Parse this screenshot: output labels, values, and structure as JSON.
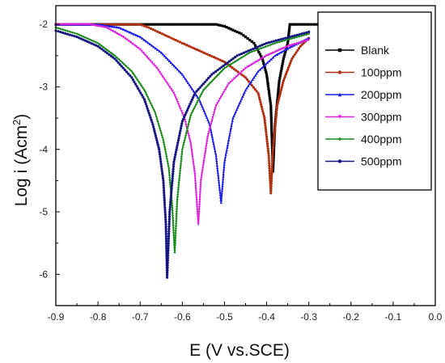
{
  "chart_data": {
    "type": "line",
    "title": "",
    "xlabel": "E (V vs.SCE)",
    "ylabel_main": "Log i (Acm",
    "ylabel_sup": "2",
    "ylabel_close": ")",
    "xlim": [
      -0.9,
      0.0
    ],
    "ylim": [
      -6.5,
      -1.7
    ],
    "x_ticks": [
      -0.9,
      -0.8,
      -0.7,
      -0.6,
      -0.5,
      -0.4,
      -0.3,
      -0.2,
      -0.1,
      0.0
    ],
    "x_tick_labels": [
      "-0.9",
      "-0.8",
      "-0.7",
      "-0.6",
      "-0.5",
      "-0.4",
      "-0.3",
      "-0.2",
      "-0.1",
      "0.0"
    ],
    "y_ticks": [
      -6,
      -5,
      -4,
      -3,
      -2
    ],
    "y_tick_labels": [
      "-6",
      "-5",
      "-4",
      "-3",
      "-2"
    ],
    "grid": false,
    "legend_position": "top-right",
    "series": [
      {
        "name": "Blank",
        "color": "#000000",
        "marker": "square",
        "x": [
          -0.9,
          -0.8,
          -0.7,
          -0.6,
          -0.52,
          -0.5,
          -0.46,
          -0.43,
          -0.41,
          -0.4,
          -0.39,
          -0.385,
          -0.38,
          -0.37,
          -0.36,
          -0.35,
          -0.345,
          -0.33,
          -0.3,
          -0.28
        ],
        "y": [
          -2.0,
          -2.0,
          -2.0,
          -2.0,
          -2.0,
          -2.03,
          -2.15,
          -2.3,
          -2.55,
          -2.8,
          -3.3,
          -4.35,
          -3.6,
          -2.9,
          -2.55,
          -2.3,
          -2.0,
          -2.0,
          -2.0,
          -2.0
        ]
      },
      {
        "name": "100ppm",
        "color": "#b03010",
        "marker": "circle",
        "x": [
          -0.9,
          -0.8,
          -0.7,
          -0.68,
          -0.6,
          -0.55,
          -0.5,
          -0.45,
          -0.42,
          -0.405,
          -0.395,
          -0.39,
          -0.385,
          -0.375,
          -0.36,
          -0.34,
          -0.32,
          -0.3
        ],
        "y": [
          -2.0,
          -2.0,
          -2.0,
          -2.05,
          -2.3,
          -2.45,
          -2.6,
          -2.85,
          -3.1,
          -3.5,
          -4.1,
          -4.7,
          -4.0,
          -3.3,
          -2.9,
          -2.55,
          -2.35,
          -2.22
        ]
      },
      {
        "name": "200ppm",
        "color": "#1a1aee",
        "marker": "triangle",
        "x": [
          -0.9,
          -0.85,
          -0.8,
          -0.75,
          -0.7,
          -0.65,
          -0.6,
          -0.56,
          -0.535,
          -0.52,
          -0.512,
          -0.508,
          -0.5,
          -0.48,
          -0.45,
          -0.42,
          -0.38,
          -0.34,
          -0.3
        ],
        "y": [
          -2.0,
          -2.0,
          -2.0,
          -2.05,
          -2.2,
          -2.45,
          -2.8,
          -3.2,
          -3.6,
          -4.1,
          -4.6,
          -4.85,
          -4.2,
          -3.5,
          -3.05,
          -2.75,
          -2.5,
          -2.35,
          -2.22
        ]
      },
      {
        "name": "300ppm",
        "color": "#dd22dd",
        "marker": "triangle-down",
        "x": [
          -0.9,
          -0.86,
          -0.82,
          -0.78,
          -0.74,
          -0.7,
          -0.66,
          -0.62,
          -0.595,
          -0.58,
          -0.57,
          -0.562,
          -0.556,
          -0.54,
          -0.52,
          -0.49,
          -0.45,
          -0.4,
          -0.35,
          -0.3
        ],
        "y": [
          -2.0,
          -2.0,
          -2.0,
          -2.05,
          -2.2,
          -2.4,
          -2.7,
          -3.1,
          -3.5,
          -3.9,
          -4.4,
          -5.2,
          -4.5,
          -3.8,
          -3.3,
          -2.95,
          -2.7,
          -2.5,
          -2.35,
          -2.25
        ]
      },
      {
        "name": "400ppm",
        "color": "#1a8a1a",
        "marker": "diamond",
        "x": [
          -0.9,
          -0.85,
          -0.8,
          -0.76,
          -0.72,
          -0.69,
          -0.665,
          -0.645,
          -0.632,
          -0.624,
          -0.618,
          -0.612,
          -0.6,
          -0.58,
          -0.55,
          -0.5,
          -0.44,
          -0.38,
          -0.3
        ],
        "y": [
          -2.05,
          -2.15,
          -2.3,
          -2.5,
          -2.75,
          -3.05,
          -3.4,
          -3.85,
          -4.3,
          -4.9,
          -5.65,
          -4.8,
          -4.0,
          -3.45,
          -3.05,
          -2.7,
          -2.45,
          -2.3,
          -2.15
        ]
      },
      {
        "name": "500ppm",
        "color": "#141480",
        "marker": "circle",
        "x": [
          -0.9,
          -0.85,
          -0.8,
          -0.76,
          -0.72,
          -0.69,
          -0.67,
          -0.655,
          -0.645,
          -0.639,
          -0.636,
          -0.63,
          -0.62,
          -0.6,
          -0.57,
          -0.53,
          -0.47,
          -0.4,
          -0.3
        ],
        "y": [
          -2.1,
          -2.2,
          -2.35,
          -2.55,
          -2.85,
          -3.2,
          -3.6,
          -4.0,
          -4.5,
          -5.2,
          -6.05,
          -5.0,
          -4.2,
          -3.55,
          -3.1,
          -2.8,
          -2.5,
          -2.3,
          -2.12
        ]
      }
    ]
  }
}
